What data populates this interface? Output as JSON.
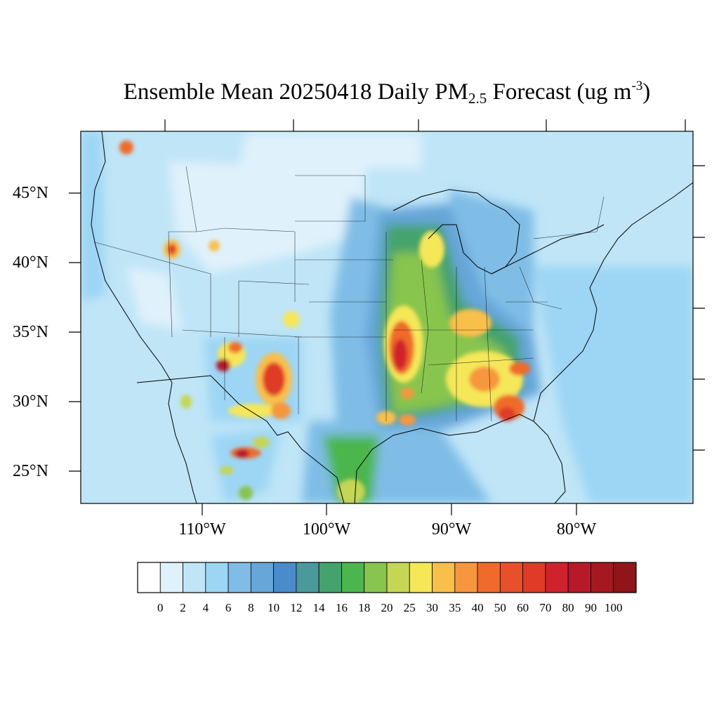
{
  "title": {
    "main": "Ensemble Mean 20250418 Daily PM",
    "sub": "2.5",
    "tail": " Forecast (ug m",
    "sup": "-3",
    "close": ")"
  },
  "map": {
    "lat_labels": [
      "45°N",
      "40°N",
      "35°N",
      "30°N",
      "25°N"
    ],
    "lon_labels": [
      "110°W",
      "100°W",
      "90°W",
      "80°W"
    ]
  },
  "colorbar": {
    "labels": [
      "0",
      "2",
      "4",
      "6",
      "8",
      "10",
      "12",
      "14",
      "16",
      "18",
      "20",
      "25",
      "30",
      "35",
      "40",
      "50",
      "60",
      "70",
      "80",
      "90",
      "100"
    ],
    "colors": [
      "#ffffff",
      "#dff1fb",
      "#bfe5f7",
      "#9cd6f4",
      "#7fbde6",
      "#66a6d9",
      "#4a8ccb",
      "#4a9a9c",
      "#44a36c",
      "#4bb64b",
      "#88c54e",
      "#c4d654",
      "#f5e758",
      "#f9bf4b",
      "#f6963d",
      "#f06a2c",
      "#e7502a",
      "#df3b27",
      "#d0222c",
      "#b7192a",
      "#a5181f",
      "#8f1519"
    ]
  }
}
